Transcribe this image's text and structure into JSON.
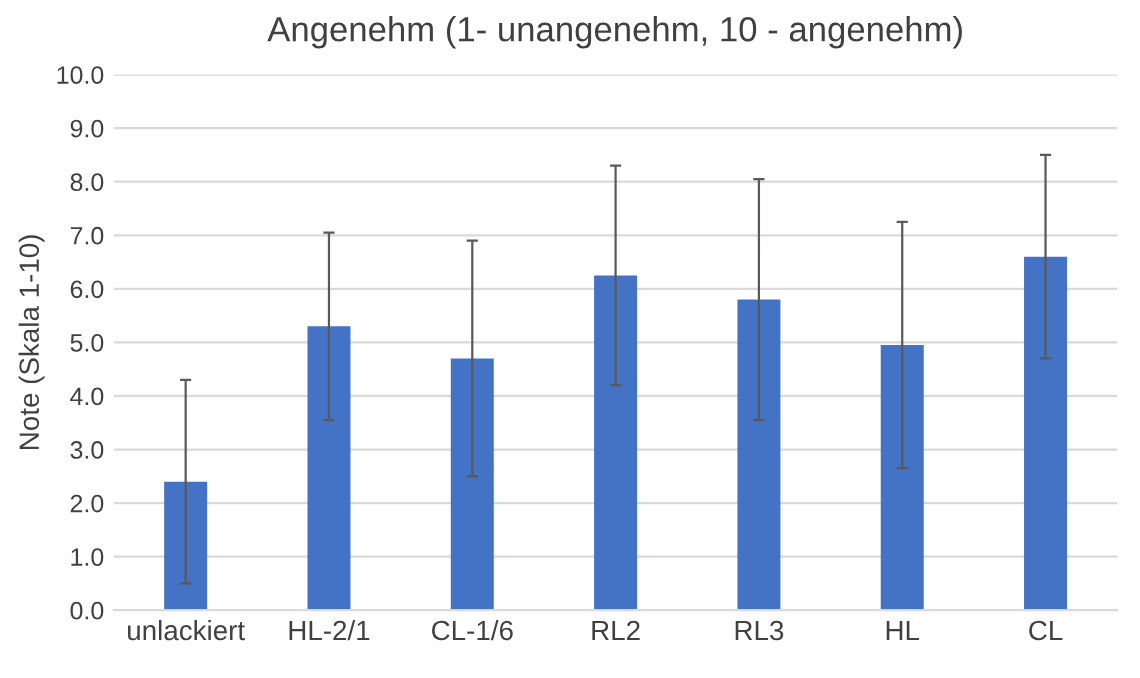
{
  "chart_data": {
    "type": "bar",
    "title": "Angenehm (1- unangenehm, 10 - angenehm)",
    "ylabel": "Note (Skala 1-10)",
    "categories": [
      "unlackiert",
      "HL-2/1",
      "CL-1/6",
      "RL2",
      "RL3",
      "HL",
      "CL"
    ],
    "values": [
      2.4,
      5.3,
      4.7,
      6.25,
      5.8,
      4.95,
      6.6
    ],
    "errors": [
      1.9,
      1.75,
      2.2,
      2.05,
      2.25,
      2.3,
      1.9
    ],
    "color": "#4472c4",
    "ylim": [
      0,
      10
    ],
    "yticks": [
      {
        "value": 0,
        "label": "0.0"
      },
      {
        "value": 1,
        "label": "1.0"
      },
      {
        "value": 2,
        "label": "2.0"
      },
      {
        "value": 3,
        "label": "3.0"
      },
      {
        "value": 4,
        "label": "4.0"
      },
      {
        "value": 5,
        "label": "5.0"
      },
      {
        "value": 6,
        "label": "6.0"
      },
      {
        "value": 7,
        "label": "7.0"
      },
      {
        "value": 8,
        "label": "8.0"
      },
      {
        "value": 9,
        "label": "9.0"
      },
      {
        "value": 10,
        "label": "10.0"
      }
    ],
    "grid": "y"
  }
}
